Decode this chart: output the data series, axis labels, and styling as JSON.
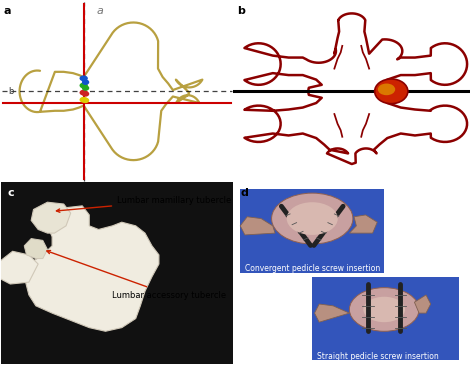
{
  "panel_a": {
    "label": "a",
    "label_a2": "a",
    "vertebra_color": "#b8a040",
    "red_line_color": "#cc0000",
    "dashed_color": "#111111",
    "dots": [
      {
        "color": "#1155cc"
      },
      {
        "color": "#22aa22"
      },
      {
        "color": "#cc2222"
      },
      {
        "color": "#ddcc00"
      }
    ]
  },
  "panel_b": {
    "label": "b",
    "outline_color": "#8B0000",
    "line_color": "#000000",
    "pedicle_fill": "#cc2200",
    "pedicle_highlight": "#dd8800"
  },
  "panel_c": {
    "label": "c",
    "bg_color": "#000000",
    "bone_color": "#f0ece0",
    "bone_shadow": "#d0c8b8",
    "label1": "Lumbar mamillary tubercle",
    "label2": "Lumbar accessory tubercle",
    "arrow_color": "#cc2200"
  },
  "panel_d": {
    "label": "d",
    "bg_color": "#ffffff",
    "photo_bg": "#3355bb",
    "bone_color": "#c8a090",
    "label1": "Convergent pedicle screw insertion",
    "label2": "Straight pedicle screw insertion"
  },
  "figure_bg": "#ffffff",
  "label_fontsize": 8,
  "annot_fontsize": 6
}
